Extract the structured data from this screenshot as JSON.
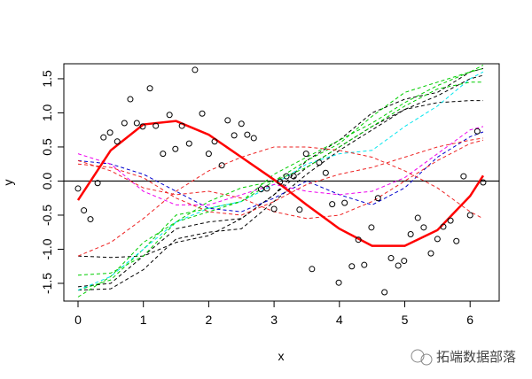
{
  "chart_data": {
    "type": "scatter",
    "xlabel": "x",
    "ylabel": "y",
    "xlim": [
      -0.217,
      6.445
    ],
    "ylim": [
      -1.76,
      1.72
    ],
    "xticks": [
      0,
      1,
      2,
      3,
      4,
      5,
      6
    ],
    "yticks": [
      -1.5,
      {
        "value": -1.0,
        "label": "-1.0"
      },
      -0.5,
      {
        "value": 0.0,
        "label": "0.0"
      },
      0.5,
      {
        "value": 1.0,
        "label": "1.0"
      },
      1.5
    ],
    "hline": 0,
    "points": {
      "x": [
        0,
        0.09,
        0.19,
        0.3,
        0.39,
        0.49,
        0.6,
        0.71,
        0.8,
        0.9,
        0.99,
        1.1,
        1.19,
        1.3,
        1.4,
        1.49,
        1.59,
        1.7,
        1.79,
        1.9,
        2.0,
        2.09,
        2.2,
        2.29,
        2.39,
        2.5,
        2.59,
        2.69,
        2.8,
        2.89,
        3.0,
        3.09,
        3.19,
        3.3,
        3.39,
        3.49,
        3.58,
        3.69,
        3.79,
        3.89,
        3.99,
        4.08,
        4.19,
        4.29,
        4.38,
        4.49,
        4.59,
        4.69,
        4.79,
        4.9,
        4.99,
        5.09,
        5.2,
        5.29,
        5.4,
        5.5,
        5.59,
        5.7,
        5.79,
        5.9,
        6.0,
        6.11,
        6.2
      ],
      "y": [
        -0.11,
        -0.43,
        -0.56,
        -0.03,
        0.64,
        0.71,
        0.58,
        0.85,
        1.2,
        0.85,
        0.8,
        1.36,
        0.81,
        0.4,
        0.97,
        0.47,
        0.81,
        0.55,
        1.63,
        0.99,
        0.4,
        0.58,
        0.23,
        0.89,
        0.67,
        0.84,
        0.68,
        0.63,
        -0.12,
        -0.11,
        -0.41,
        -0.01,
        0.07,
        0.07,
        -0.42,
        0.4,
        -1.29,
        0.27,
        0.12,
        -0.34,
        -1.49,
        -0.32,
        -1.25,
        -0.86,
        -1.23,
        -0.68,
        -0.25,
        -1.63,
        -1.13,
        -1.24,
        -1.17,
        -0.78,
        -0.54,
        -0.68,
        -1.06,
        -0.85,
        -0.67,
        -0.58,
        -0.88,
        0.07,
        -0.5,
        0.73,
        -0.02
      ]
    },
    "line_x": [
      0,
      0.5,
      1,
      1.5,
      2,
      2.5,
      3,
      3.5,
      4,
      4.5,
      5,
      5.5,
      6,
      6.2
    ],
    "lines": [
      {
        "color": "#000000",
        "dash": true,
        "values": [
          -1.55,
          -1.5,
          -1.1,
          -0.7,
          -0.6,
          -0.55,
          -0.2,
          0.3,
          0.6,
          1.0,
          1.2,
          1.3,
          1.6,
          1.65
        ]
      },
      {
        "color": "#000000",
        "dash": true,
        "values": [
          -1.1,
          -1.12,
          -1.1,
          -0.9,
          -0.8,
          -0.55,
          -0.2,
          0.2,
          0.5,
          0.8,
          1.05,
          1.15,
          1.18,
          1.18
        ]
      },
      {
        "color": "#000000",
        "dash": true,
        "values": [
          -1.6,
          -1.58,
          -1.3,
          -0.85,
          -0.75,
          -0.7,
          -0.3,
          0.1,
          0.45,
          0.75,
          1.05,
          1.25,
          1.5,
          1.55
        ]
      },
      {
        "color": "#00cd00",
        "dash": true,
        "values": [
          -1.38,
          -1.35,
          -1.1,
          -0.6,
          -0.3,
          -0.1,
          0.0,
          0.2,
          0.5,
          0.8,
          1.1,
          1.35,
          1.45,
          1.45
        ]
      },
      {
        "color": "#00cd00",
        "dash": true,
        "values": [
          -1.7,
          -1.4,
          -0.9,
          -0.6,
          -0.45,
          -0.3,
          0.1,
          0.35,
          0.6,
          0.85,
          1.15,
          1.4,
          1.6,
          1.65
        ]
      },
      {
        "color": "#00cd00",
        "dash": true,
        "values": [
          -1.6,
          -1.45,
          -1.0,
          -0.5,
          -0.4,
          -0.3,
          0.0,
          0.3,
          0.55,
          0.95,
          1.3,
          1.45,
          1.6,
          1.7
        ]
      },
      {
        "color": "#00e5ee",
        "dash": true,
        "values": [
          -1.6,
          -1.4,
          -1.0,
          -0.6,
          -0.4,
          -0.3,
          -0.05,
          0.25,
          0.4,
          0.45,
          0.8,
          1.1,
          1.5,
          1.6
        ]
      },
      {
        "color": "#0000cd",
        "dash": true,
        "values": [
          0.3,
          0.25,
          0.1,
          -0.15,
          -0.4,
          -0.45,
          -0.25,
          0.0,
          -0.2,
          -0.35,
          -0.1,
          0.35,
          0.65,
          0.72
        ]
      },
      {
        "color": "#ee00ee",
        "dash": true,
        "values": [
          0.4,
          0.25,
          -0.15,
          -0.35,
          -0.35,
          -0.2,
          -0.05,
          -0.15,
          -0.2,
          -0.15,
          0.05,
          0.4,
          0.75,
          0.8
        ]
      },
      {
        "color": "#ee2222",
        "dash": true,
        "values": [
          0.25,
          0.2,
          0.05,
          -0.25,
          -0.45,
          -0.5,
          -0.3,
          -0.05,
          0.1,
          0.2,
          0.35,
          0.5,
          0.6,
          0.63
        ]
      },
      {
        "color": "#ee2222",
        "dash": true,
        "values": [
          -1.1,
          -0.9,
          -0.55,
          -0.15,
          0.15,
          0.35,
          0.5,
          0.5,
          0.45,
          0.35,
          0.15,
          -0.1,
          -0.45,
          -0.55
        ]
      },
      {
        "color": "#ee2222",
        "dash": true,
        "values": [
          0.3,
          0.15,
          -0.1,
          -0.2,
          -0.15,
          -0.25,
          -0.45,
          -0.55,
          -0.5,
          -0.3,
          0.0,
          0.3,
          0.55,
          0.6
        ]
      },
      {
        "color": "#ff0000",
        "dash": false,
        "width": 2.5,
        "values": [
          -0.28,
          0.45,
          0.83,
          0.88,
          0.68,
          0.35,
          0.02,
          -0.35,
          -0.7,
          -0.95,
          -0.95,
          -0.72,
          -0.22,
          0.08
        ]
      }
    ],
    "watermark": "拓端数据部落"
  }
}
